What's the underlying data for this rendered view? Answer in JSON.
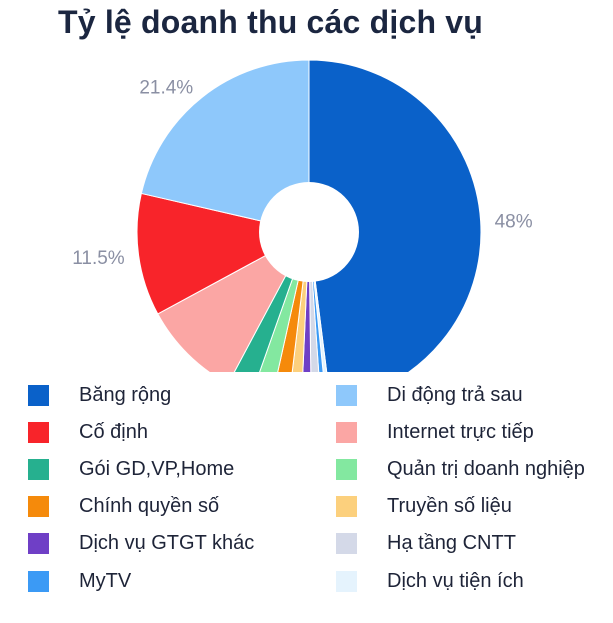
{
  "chart_data": {
    "type": "pie",
    "variant": "donut",
    "title": "Tỷ lệ doanh thu các dịch vụ",
    "categories": [
      "Băng rộng",
      "Di động trả sau",
      "Cố định",
      "Internet trực tiếp",
      "Gói GD,VP,Home",
      "Quản trị doanh nghiệp",
      "Chính quyền số",
      "Truyền số liệu",
      "Dịch vụ GTGT khác",
      "Hạ tầng CNTT",
      "MyTV",
      "Dịch vụ tiện ích"
    ],
    "slice_order": [
      "Băng rộng",
      "Dịch vụ tiện ích",
      "MyTV",
      "Hạ tầng CNTT",
      "Dịch vụ GTGT khác",
      "Truyền số liệu",
      "Chính quyền số",
      "Quản trị doanh nghiệp",
      "Gói GD,VP,Home",
      "Internet trực tiếp",
      "Cố định",
      "Di động trả sau"
    ],
    "values": [
      48,
      21.4,
      11.5,
      9.3,
      2.4,
      1.9,
      1.6,
      1.2,
      0.9,
      0.9,
      0.5,
      0.4
    ],
    "colors": [
      "#0a61c9",
      "#8ec8fb",
      "#f8242a",
      "#fba6a4",
      "#26b08f",
      "#83e8a0",
      "#f58a0b",
      "#fcd07d",
      "#6f3fc6",
      "#d4d9e8",
      "#3b9af5",
      "#e5f3fd"
    ],
    "data_labels": [
      {
        "category": "Băng rộng",
        "text": "48%"
      },
      {
        "category": "Di động trả sau",
        "text": "21.4%"
      },
      {
        "category": "Cố định",
        "text": "11.5%"
      }
    ],
    "legend_placement": "bottom",
    "legend_columns": 2
  }
}
